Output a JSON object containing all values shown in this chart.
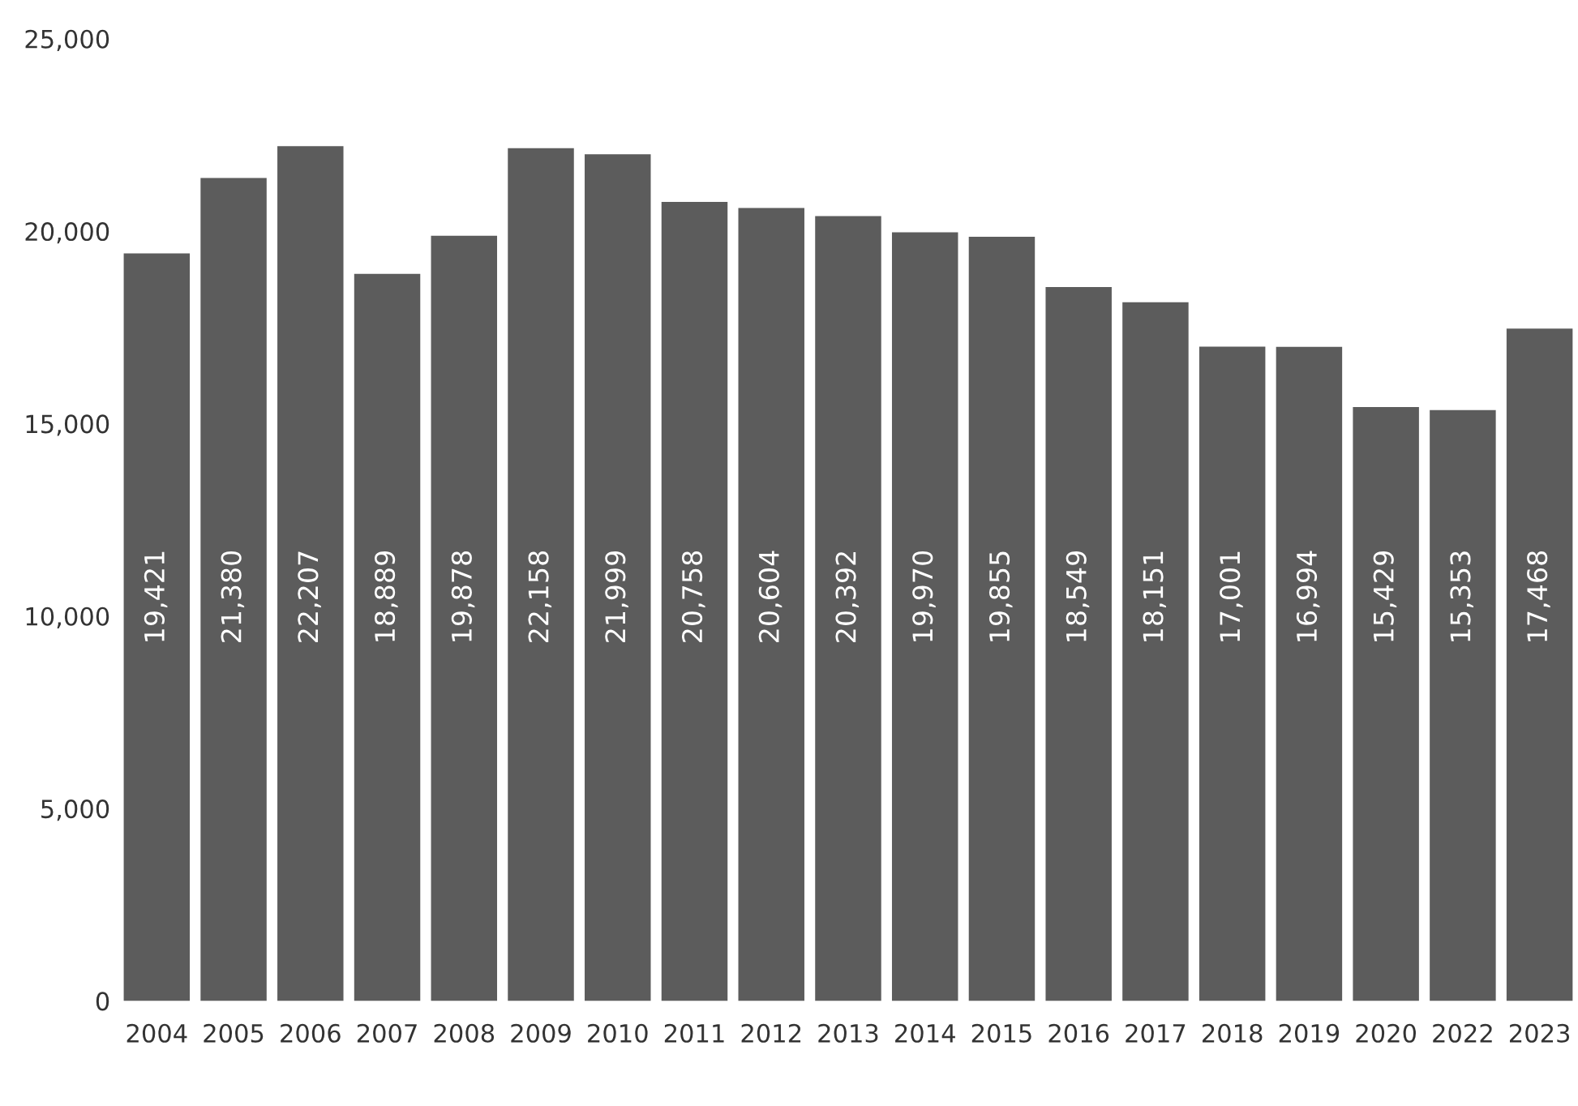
{
  "chart_data": {
    "type": "bar",
    "categories": [
      "2004",
      "2005",
      "2006",
      "2007",
      "2008",
      "2009",
      "2010",
      "2011",
      "2012",
      "2013",
      "2014",
      "2015",
      "2016",
      "2017",
      "2018",
      "2019",
      "2020",
      "2022",
      "2023"
    ],
    "values": [
      19421,
      21380,
      22207,
      18889,
      19878,
      22158,
      21999,
      20758,
      20604,
      20392,
      19970,
      19855,
      18549,
      18151,
      17001,
      16994,
      15429,
      15353,
      17468
    ],
    "value_labels": [
      "19,421",
      "21,380",
      "22,207",
      "18,889",
      "19,878",
      "22,158",
      "21,999",
      "20,758",
      "20,604",
      "20,392",
      "19,970",
      "19,855",
      "18,549",
      "18,151",
      "17,001",
      "16,994",
      "15,429",
      "15,353",
      "17,468"
    ],
    "color": "#5c5c5c",
    "ylim": [
      0,
      25000
    ],
    "yticks": [
      {
        "value": 0,
        "label": "0"
      },
      {
        "value": 5000,
        "label": "5,000"
      },
      {
        "value": 10000,
        "label": "10,000"
      },
      {
        "value": 15000,
        "label": "15,000"
      },
      {
        "value": 20000,
        "label": "20,000"
      },
      {
        "value": 25000,
        "label": "25,000"
      }
    ],
    "grid": false,
    "legend": false
  }
}
